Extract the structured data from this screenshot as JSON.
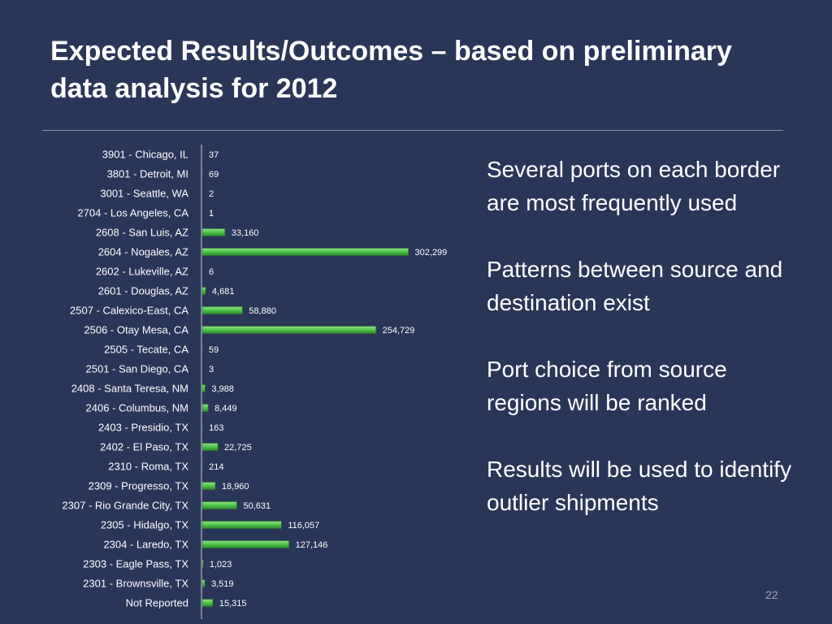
{
  "slide": {
    "title": "Expected Results/Outcomes – based on preliminary\ndata analysis for 2012",
    "bullets": [
      "Several ports on each border are most frequently used",
      "Patterns between source and destination exist",
      "Port choice from source regions will be ranked",
      "Results will be used to identify outlier shipments"
    ],
    "page_number": "22"
  },
  "colors": {
    "background": "#2a3658",
    "bar": "#4fc24a",
    "text": "#ffffff"
  },
  "chart_data": {
    "type": "bar",
    "orientation": "horizontal",
    "title": "",
    "xlabel": "",
    "ylabel": "",
    "xlim": [
      0,
      310000
    ],
    "grid": false,
    "legend": "none",
    "categories": [
      "3901 - Chicago, IL",
      "3801 - Detroit, MI",
      "3001 - Seattle, WA",
      "2704 - Los Angeles, CA",
      "2608 - San Luis, AZ",
      "2604 - Nogales, AZ",
      "2602 - Lukeville, AZ",
      "2601 - Douglas, AZ",
      "2507 - Calexico-East, CA",
      "2506 - Otay Mesa, CA",
      "2505 - Tecate, CA",
      "2501 - San Diego, CA",
      "2408 - Santa Teresa, NM",
      "2406 - Columbus, NM",
      "2403 - Presidio, TX",
      "2402 - El Paso, TX",
      "2310 - Roma, TX",
      "2309 - Progresso, TX",
      "2307 - Rio Grande City, TX",
      "2305 - Hidalgo, TX",
      "2304 - Laredo, TX",
      "2303 - Eagle Pass, TX",
      "2301 - Brownsville, TX",
      "Not Reported"
    ],
    "values": [
      37,
      69,
      2,
      1,
      33160,
      302299,
      6,
      4681,
      58880,
      254729,
      59,
      3,
      3988,
      8449,
      163,
      22725,
      214,
      18960,
      50631,
      116057,
      127146,
      1023,
      3519,
      15315
    ],
    "data_labels": [
      "37",
      "69",
      "2",
      "1",
      "33,160",
      "302,299",
      "6",
      "4,681",
      "58,880",
      "254,729",
      "59",
      "3",
      "3,988",
      "8,449",
      "163",
      "22,725",
      "214",
      "18,960",
      "50,631",
      "116,057",
      "127,146",
      "1,023",
      "3,519",
      "15,315"
    ]
  }
}
